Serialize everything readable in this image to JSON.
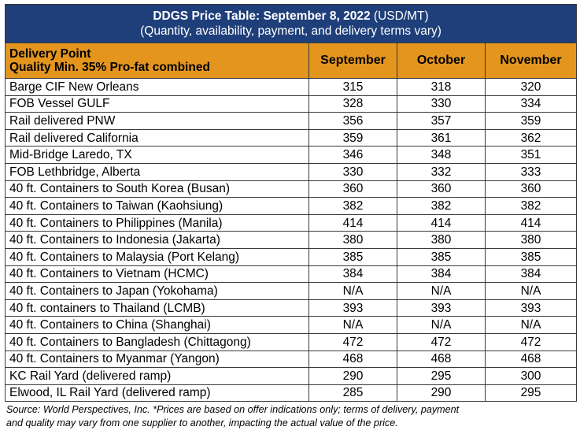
{
  "title": {
    "main": "DDGS Price Table: September 8, 2022",
    "unit": " (USD/MT)",
    "subtitle": "(Quantity, availability, payment, and delivery terms vary)"
  },
  "header": {
    "col0_line1": "Delivery Point",
    "col0_line2": "Quality Min. 35% Pro-fat combined",
    "months": [
      "September",
      "October",
      "November"
    ]
  },
  "rows": [
    {
      "location": "Barge CIF New Orleans",
      "values": [
        "315",
        "318",
        "320"
      ]
    },
    {
      "location": "FOB Vessel GULF",
      "values": [
        "328",
        "330",
        "334"
      ]
    },
    {
      "location": "Rail delivered PNW",
      "values": [
        "356",
        "357",
        "359"
      ]
    },
    {
      "location": "Rail delivered California",
      "values": [
        "359",
        "361",
        "362"
      ]
    },
    {
      "location": "Mid-Bridge Laredo, TX",
      "values": [
        "346",
        "348",
        "351"
      ]
    },
    {
      "location": "FOB Lethbridge, Alberta",
      "values": [
        "330",
        "332",
        "333"
      ]
    },
    {
      "location": "40 ft. Containers to South Korea (Busan)",
      "values": [
        "360",
        "360",
        "360"
      ]
    },
    {
      "location": "40 ft. Containers to Taiwan (Kaohsiung)",
      "values": [
        "382",
        "382",
        "382"
      ]
    },
    {
      "location": "40 ft. Containers to Philippines (Manila)",
      "values": [
        "414",
        "414",
        "414"
      ]
    },
    {
      "location": "40 ft. Containers to Indonesia (Jakarta)",
      "values": [
        "380",
        "380",
        "380"
      ]
    },
    {
      "location": "40 ft. Containers to Malaysia (Port Kelang)",
      "values": [
        "385",
        "385",
        "385"
      ]
    },
    {
      "location": "40 ft. Containers to Vietnam (HCMC)",
      "values": [
        "384",
        "384",
        "384"
      ]
    },
    {
      "location": "40 ft. Containers to Japan (Yokohama)",
      "values": [
        "N/A",
        "N/A",
        "N/A"
      ]
    },
    {
      "location": "40 ft. containers to Thailand (LCMB)",
      "values": [
        "393",
        "393",
        "393"
      ]
    },
    {
      "location": "40 ft. Containers to China (Shanghai)",
      "values": [
        "N/A",
        "N/A",
        "N/A"
      ]
    },
    {
      "location": "40 ft. Containers to Bangladesh (Chittagong)",
      "values": [
        "472",
        "472",
        "472"
      ]
    },
    {
      "location": "40 ft. Containers to Myanmar (Yangon)",
      "values": [
        "468",
        "468",
        "468"
      ]
    },
    {
      "location": "KC Rail Yard (delivered ramp)",
      "values": [
        "290",
        "295",
        "300"
      ]
    },
    {
      "location": "Elwood, IL Rail Yard (delivered ramp)",
      "values": [
        "285",
        "290",
        "295"
      ]
    }
  ],
  "source": {
    "line1": "Source: World Perspectives, Inc. *Prices are based on offer indications only; terms of delivery, payment",
    "line2": "and quality may vary from one supplier to another, impacting the actual value of the price."
  }
}
